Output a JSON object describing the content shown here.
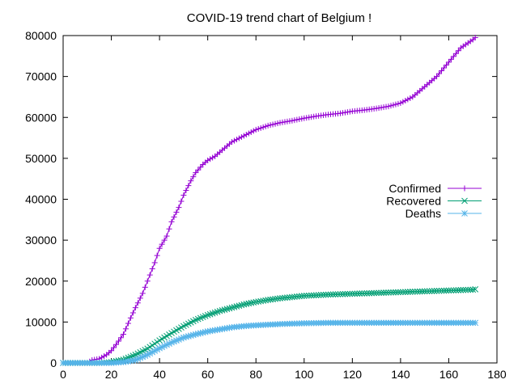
{
  "chart_data": {
    "type": "line",
    "title": "COVID-19 trend chart of Belgium !",
    "xlabel": "",
    "ylabel": "",
    "xlim": [
      0,
      180
    ],
    "ylim": [
      0,
      80000
    ],
    "x_ticks": [
      0,
      20,
      40,
      60,
      80,
      100,
      120,
      140,
      160,
      180
    ],
    "y_ticks": [
      0,
      10000,
      20000,
      30000,
      40000,
      50000,
      60000,
      70000,
      80000
    ],
    "grid": false,
    "legend_position": "right",
    "series": [
      {
        "name": "Confirmed",
        "color": "#9400d3",
        "marker": "plus",
        "points": [
          [
            0,
            0
          ],
          [
            10,
            0
          ],
          [
            12,
            700
          ],
          [
            15,
            1000
          ],
          [
            18,
            2000
          ],
          [
            20,
            3000
          ],
          [
            22,
            4500
          ],
          [
            25,
            7000
          ],
          [
            28,
            11000
          ],
          [
            30,
            13500
          ],
          [
            33,
            17000
          ],
          [
            35,
            20000
          ],
          [
            38,
            24500
          ],
          [
            40,
            28000
          ],
          [
            43,
            31000
          ],
          [
            45,
            34500
          ],
          [
            48,
            38000
          ],
          [
            50,
            41000
          ],
          [
            53,
            44500
          ],
          [
            55,
            46500
          ],
          [
            58,
            48500
          ],
          [
            60,
            49500
          ],
          [
            63,
            50500
          ],
          [
            65,
            51500
          ],
          [
            68,
            53000
          ],
          [
            70,
            54000
          ],
          [
            75,
            55500
          ],
          [
            80,
            57000
          ],
          [
            85,
            58000
          ],
          [
            90,
            58700
          ],
          [
            95,
            59200
          ],
          [
            100,
            59800
          ],
          [
            105,
            60300
          ],
          [
            110,
            60700
          ],
          [
            115,
            61000
          ],
          [
            120,
            61500
          ],
          [
            125,
            61800
          ],
          [
            130,
            62200
          ],
          [
            135,
            62700
          ],
          [
            140,
            63500
          ],
          [
            145,
            65000
          ],
          [
            150,
            67500
          ],
          [
            155,
            70000
          ],
          [
            160,
            73500
          ],
          [
            165,
            77000
          ],
          [
            170,
            79000
          ],
          [
            171,
            79500
          ]
        ]
      },
      {
        "name": "Recovered",
        "color": "#009e73",
        "marker": "cross",
        "points": [
          [
            0,
            0
          ],
          [
            15,
            0
          ],
          [
            20,
            200
          ],
          [
            25,
            800
          ],
          [
            30,
            2000
          ],
          [
            35,
            3500
          ],
          [
            40,
            5500
          ],
          [
            45,
            7300
          ],
          [
            50,
            9000
          ],
          [
            55,
            10500
          ],
          [
            60,
            11700
          ],
          [
            65,
            12700
          ],
          [
            70,
            13500
          ],
          [
            75,
            14300
          ],
          [
            80,
            14900
          ],
          [
            85,
            15400
          ],
          [
            90,
            15800
          ],
          [
            95,
            16100
          ],
          [
            100,
            16400
          ],
          [
            110,
            16700
          ],
          [
            120,
            16900
          ],
          [
            130,
            17100
          ],
          [
            140,
            17300
          ],
          [
            150,
            17500
          ],
          [
            160,
            17700
          ],
          [
            170,
            17900
          ],
          [
            171,
            18000
          ]
        ]
      },
      {
        "name": "Deaths",
        "color": "#56b4e9",
        "marker": "star",
        "points": [
          [
            0,
            0
          ],
          [
            20,
            0
          ],
          [
            25,
            200
          ],
          [
            30,
            700
          ],
          [
            35,
            2000
          ],
          [
            40,
            3600
          ],
          [
            45,
            5000
          ],
          [
            50,
            6200
          ],
          [
            55,
            7000
          ],
          [
            60,
            7700
          ],
          [
            65,
            8200
          ],
          [
            70,
            8700
          ],
          [
            75,
            9000
          ],
          [
            80,
            9200
          ],
          [
            90,
            9500
          ],
          [
            100,
            9700
          ],
          [
            110,
            9800
          ],
          [
            120,
            9800
          ],
          [
            130,
            9800
          ],
          [
            140,
            9800
          ],
          [
            150,
            9800
          ],
          [
            160,
            9800
          ],
          [
            170,
            9800
          ],
          [
            171,
            9800
          ]
        ]
      }
    ]
  }
}
